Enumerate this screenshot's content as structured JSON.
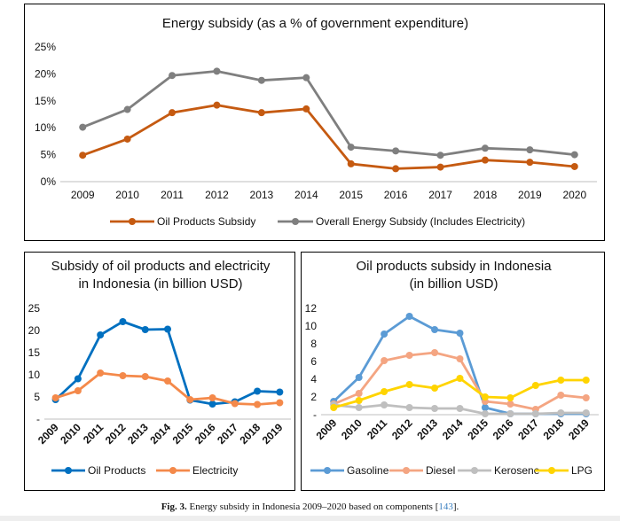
{
  "caption": {
    "label": "Fig. 3.",
    "text": "Energy subsidy in Indonesia 2009–2020 based on components [",
    "ref": "143",
    "end": "]."
  },
  "chart_data": [
    {
      "type": "line",
      "title": "Energy subsidy (as a % of government expenditure)",
      "categories": [
        "2009",
        "2010",
        "2011",
        "2012",
        "2013",
        "2014",
        "2015",
        "2016",
        "2017",
        "2018",
        "2019",
        "2020"
      ],
      "ylim": [
        0,
        25
      ],
      "yticks": [
        0,
        5,
        10,
        15,
        20,
        25
      ],
      "ytick_labels": [
        "0%",
        "5%",
        "10%",
        "15%",
        "20%",
        "25%"
      ],
      "grid": false,
      "legend": "bottom",
      "series": [
        {
          "name": "Oil Products Subsidy",
          "color": "#c55a11",
          "values": [
            4.9,
            7.9,
            12.8,
            14.2,
            12.8,
            13.5,
            3.3,
            2.4,
            2.7,
            4.0,
            3.6,
            2.8
          ]
        },
        {
          "name": "Overall Energy Subsidy (Includes Electricity)",
          "color": "#7f7f7f",
          "values": [
            10.1,
            13.4,
            19.7,
            20.5,
            18.8,
            19.3,
            6.4,
            5.7,
            4.9,
            6.2,
            5.9,
            5.0
          ]
        }
      ]
    },
    {
      "type": "line",
      "title": "Subsidy of oil products and electricity",
      "title2": "in Indonesia (in billion  USD)",
      "categories": [
        "2009",
        "2010",
        "2011",
        "2012",
        "2013",
        "2014",
        "2015",
        "2016",
        "2017",
        "2018",
        "2019"
      ],
      "ylim": [
        0,
        25
      ],
      "yticks": [
        0,
        5,
        10,
        15,
        20,
        25
      ],
      "ytick_labels": [
        "-",
        "5",
        "10",
        "15",
        "20",
        "25"
      ],
      "grid": false,
      "legend": "bottom",
      "series": [
        {
          "name": "Oil Products",
          "color": "#0070c0",
          "values": [
            4.4,
            9.1,
            19.0,
            22.0,
            20.2,
            20.3,
            4.3,
            3.4,
            3.9,
            6.3,
            6.1
          ]
        },
        {
          "name": "Electricity",
          "color": "#f4894a",
          "values": [
            4.8,
            6.4,
            10.4,
            9.8,
            9.6,
            8.6,
            4.4,
            4.8,
            3.5,
            3.3,
            3.7
          ]
        }
      ]
    },
    {
      "type": "line",
      "title": "Oil products subsidy in Indonesia",
      "title2": "(in billion USD)",
      "categories": [
        "2009",
        "2010",
        "2011",
        "2012",
        "2013",
        "2014",
        "2015",
        "2016",
        "2017",
        "2018",
        "2019"
      ],
      "ylim": [
        0,
        12
      ],
      "yticks": [
        0,
        2,
        4,
        6,
        8,
        10,
        12
      ],
      "ytick_labels": [
        "-",
        "2",
        "4",
        "6",
        "8",
        "10",
        "12"
      ],
      "grid": false,
      "legend": "bottom",
      "series": [
        {
          "name": "Gasoline",
          "color": "#5b9bd5",
          "values": [
            1.5,
            4.2,
            9.1,
            11.1,
            9.6,
            9.2,
            0.8,
            0.1,
            0.1,
            0.1,
            0.1
          ]
        },
        {
          "name": "Diesel",
          "color": "#f4a582",
          "values": [
            1.2,
            2.4,
            6.1,
            6.7,
            7.0,
            6.3,
            1.5,
            1.2,
            0.6,
            2.2,
            1.9
          ]
        },
        {
          "name": "Kerosene",
          "color": "#bfbfbf",
          "values": [
            1.1,
            0.8,
            1.1,
            0.8,
            0.7,
            0.7,
            0.1,
            0.1,
            0.1,
            0.2,
            0.2
          ]
        },
        {
          "name": "LPG",
          "color": "#ffd400",
          "values": [
            0.8,
            1.6,
            2.6,
            3.4,
            3.0,
            4.1,
            2.0,
            1.9,
            3.3,
            3.9,
            3.9
          ]
        }
      ]
    }
  ]
}
